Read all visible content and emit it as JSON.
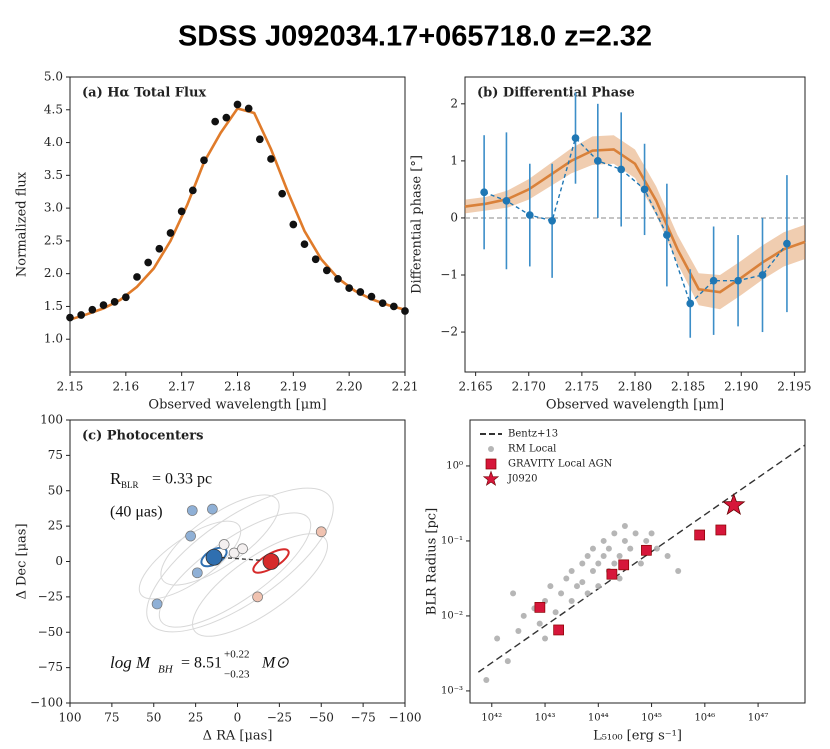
{
  "title": "SDSS J092034.17+065718.0   z=2.32",
  "chart_data": [
    {
      "type": "line",
      "title": "(a) Hα Total Flux",
      "xlabel": "Observed wavelength [μm]",
      "ylabel": "Normalized flux",
      "xlim": [
        2.15,
        2.21
      ],
      "ylim": [
        0.5,
        5.0
      ],
      "xticks": [
        2.15,
        2.16,
        2.17,
        2.18,
        2.19,
        {
          "value": 2.2,
          "label": "2.20"
        },
        2.21
      ],
      "yticks": [
        {
          "value": 1,
          "label": "1.0"
        },
        1.5,
        {
          "value": 2,
          "label": "2.0"
        },
        2.5,
        {
          "value": 3,
          "label": "3.0"
        },
        3.5,
        {
          "value": 4,
          "label": "4.0"
        },
        4.5,
        {
          "value": 5,
          "label": "5.0"
        }
      ],
      "series": [
        {
          "color": "#e07b2a",
          "line": "solid",
          "x": [
            2.15,
            2.153,
            2.156,
            2.159,
            2.162,
            2.165,
            2.168,
            2.171,
            2.174,
            2.177,
            2.18,
            2.183,
            2.186,
            2.189,
            2.192,
            2.195,
            2.198,
            2.201,
            2.204,
            2.207,
            2.21
          ],
          "values": [
            1.3,
            1.38,
            1.47,
            1.6,
            1.8,
            2.08,
            2.5,
            3.05,
            3.7,
            4.15,
            4.52,
            4.45,
            3.9,
            3.25,
            2.65,
            2.22,
            1.93,
            1.74,
            1.61,
            1.52,
            1.45
          ]
        },
        {
          "color": "#111111",
          "marker": "circle",
          "x": [
            2.15,
            2.152,
            2.154,
            2.156,
            2.158,
            2.16,
            2.162,
            2.164,
            2.166,
            2.168,
            2.17,
            2.172,
            2.174,
            2.176,
            2.178,
            2.18,
            2.182,
            2.184,
            2.186,
            2.188,
            2.19,
            2.192,
            2.194,
            2.196,
            2.198,
            2.2,
            2.202,
            2.204,
            2.206,
            2.208,
            2.21
          ],
          "values": [
            1.33,
            1.37,
            1.45,
            1.52,
            1.57,
            1.64,
            1.95,
            2.17,
            2.38,
            2.62,
            2.95,
            3.27,
            3.73,
            4.32,
            4.38,
            4.58,
            4.52,
            4.05,
            3.75,
            3.22,
            2.75,
            2.45,
            2.22,
            2.05,
            1.92,
            1.78,
            1.72,
            1.65,
            1.55,
            1.5,
            1.43
          ]
        }
      ]
    },
    {
      "type": "line",
      "title": "(b) Differential Phase",
      "xlabel": "Observed wavelength [μm]",
      "ylabel": "Differential phase [°]",
      "xlim": [
        2.164,
        2.196
      ],
      "ylim": [
        -2.7,
        2.47
      ],
      "xticks": [
        2.165,
        {
          "value": 2.17,
          "label": "2.170"
        },
        2.175,
        {
          "value": 2.18,
          "label": "2.180"
        },
        2.185,
        {
          "value": 2.19,
          "label": "2.190"
        },
        2.195
      ],
      "yticks": [
        {
          "value": -2,
          "label": "−2"
        },
        {
          "value": -1,
          "label": "−1"
        },
        0,
        1,
        2
      ],
      "hlines": [
        0
      ],
      "series": [
        {
          "color": "#d9813a",
          "line": "solid",
          "band": true,
          "x": [
            2.164,
            2.166,
            2.168,
            2.17,
            2.172,
            2.174,
            2.176,
            2.178,
            2.18,
            2.182,
            2.184,
            2.186,
            2.188,
            2.19,
            2.192,
            2.194,
            2.196
          ],
          "values": [
            0.2,
            0.25,
            0.33,
            0.5,
            0.75,
            1.0,
            1.18,
            1.2,
            0.95,
            0.3,
            -0.55,
            -1.25,
            -1.3,
            -1.05,
            -0.78,
            -0.55,
            -0.42
          ],
          "errors": [
            0.12,
            0.12,
            0.15,
            0.18,
            0.2,
            0.22,
            0.25,
            0.25,
            0.25,
            0.25,
            0.25,
            0.28,
            0.3,
            0.3,
            0.3,
            0.3,
            0.3
          ]
        },
        {
          "color": "#1f77b4",
          "line": "dashed",
          "marker": "circle",
          "x": [
            2.1658,
            2.1679,
            2.1701,
            2.1722,
            2.1744,
            2.1765,
            2.1787,
            2.1809,
            2.183,
            2.1852,
            2.1874,
            2.1897,
            2.192,
            2.1943
          ],
          "values": [
            0.45,
            0.3,
            0.05,
            -0.05,
            1.4,
            1.0,
            0.85,
            0.5,
            -0.3,
            -1.5,
            -1.1,
            -1.1,
            -1.0,
            -0.45
          ],
          "errors": [
            1.0,
            1.2,
            0.9,
            1.0,
            0.8,
            1.0,
            1.0,
            0.8,
            0.9,
            0.6,
            0.95,
            0.8,
            1.0,
            1.2
          ]
        }
      ]
    },
    {
      "type": "scatter",
      "title": "(c) Photocenters",
      "xlabel": "Δ RA [μas]",
      "ylabel": "Δ Dec [μas]",
      "xlim": [
        100,
        -100
      ],
      "ylim": [
        -100,
        100
      ],
      "xticks": [
        100,
        75,
        50,
        25,
        0,
        {
          "value": -25,
          "label": "−25"
        },
        {
          "value": -50,
          "label": "−50"
        },
        {
          "value": -75,
          "label": "−75"
        },
        {
          "value": -100,
          "label": "−100"
        }
      ],
      "yticks": [
        {
          "value": -100,
          "label": "−100"
        },
        {
          "value": -75,
          "label": "−75"
        },
        {
          "value": -50,
          "label": "−50"
        },
        {
          "value": -25,
          "label": "−25"
        },
        0,
        25,
        50,
        75,
        100
      ],
      "annotations": [
        "R",
        "BLR",
        "= 0.33 pc",
        "(40 μas)",
        "log M",
        "BH",
        "= 8.51",
        "+0.22",
        "−0.23",
        "M⊙"
      ],
      "series": [
        {
          "color": "#8fb0d6",
          "marker": "circle",
          "x": [
            28,
            15,
            24,
            48,
            27
          ],
          "values": [
            18,
            37,
            -8,
            -30,
            36
          ]
        },
        {
          "color": "#f0c2b0",
          "marker": "circle",
          "x": [
            -50,
            -12
          ],
          "values": [
            21,
            -25
          ]
        },
        {
          "color": "#f4f0f0",
          "marker": "circle",
          "x": [
            2,
            -3,
            8
          ],
          "values": [
            6,
            9,
            12
          ]
        },
        {
          "color": "#2f6fb0",
          "marker": "circle-large",
          "x": [
            14
          ],
          "values": [
            3
          ]
        },
        {
          "color": "#d62a2a",
          "marker": "circle-large",
          "x": [
            -20
          ],
          "values": [
            0
          ]
        }
      ]
    },
    {
      "type": "scatter",
      "xlabel": "L₅₁₀₀ [erg s⁻¹]",
      "ylabel": "BLR Radius [pc]",
      "log": true,
      "legend": "upper left",
      "xlim": [
        3.9e+41,
        7.6e+47
      ],
      "ylim": [
        0.00069,
        4.1
      ],
      "xticks": [
        {
          "value": 1e+42,
          "label": "10⁴²"
        },
        {
          "value": 1e+43,
          "label": "10⁴³"
        },
        {
          "value": 1e+44,
          "label": "10⁴⁴"
        },
        {
          "value": 1e+45,
          "label": "10⁴⁵"
        },
        {
          "value": 1e+46,
          "label": "10⁴⁶"
        },
        {
          "value": 1e+47,
          "label": "10⁴⁷"
        }
      ],
      "yticks": [
        {
          "value": 0.001,
          "label": "10⁻³"
        },
        {
          "value": 0.01,
          "label": "10⁻²"
        },
        {
          "value": 0.1,
          "label": "10⁻¹"
        },
        {
          "value": 1,
          "label": "10⁰"
        }
      ],
      "series": [
        {
          "name": "Bentz+13",
          "color": "#333333",
          "line": "dashed",
          "x": [
            5.6e+41,
            7.6e+47
          ],
          "values": [
            0.00178,
            1.9
          ]
        },
        {
          "name": "RM Local",
          "color": "#a9a9a9",
          "marker": "dot",
          "x": [
            7.9e+41,
            1.26e+42,
            2e+42,
            3.16e+42,
            3.98e+42,
            6.31e+42,
            7.94e+42,
            1e+43,
            1.26e+43,
            1.58e+43,
            2e+43,
            2.51e+43,
            3.16e+43,
            3.16e+43,
            3.98e+43,
            5.01e+43,
            5.01e+43,
            6.31e+43,
            6.31e+43,
            7.94e+43,
            7.94e+43,
            1e+44,
            1e+44,
            1.26e+44,
            1.26e+44,
            1.58e+44,
            1.58e+44,
            2e+44,
            2e+44,
            2.51e+44,
            2.51e+44,
            3.16e+44,
            3.16e+44,
            3.98e+44,
            5.01e+44,
            6.31e+44,
            7.94e+44,
            1e+45,
            1.26e+45,
            2e+45,
            3.16e+45,
            2.51e+42,
            1e+43
          ],
          "values": [
            0.0014,
            0.005,
            0.0025,
            0.0063,
            0.01,
            0.0126,
            0.0079,
            0.0158,
            0.025,
            0.0112,
            0.02,
            0.0316,
            0.0158,
            0.0398,
            0.025,
            0.05,
            0.0282,
            0.063,
            0.02,
            0.0398,
            0.079,
            0.05,
            0.025,
            0.063,
            0.1,
            0.0398,
            0.079,
            0.126,
            0.05,
            0.063,
            0.0316,
            0.1,
            0.158,
            0.079,
            0.126,
            0.05,
            0.1,
            0.126,
            0.079,
            0.063,
            0.0398,
            0.02,
            0.005
          ]
        },
        {
          "name": "GRAVITY Local AGN",
          "color": "#d6163a",
          "marker": "square",
          "x": [
            8e+42,
            1.8e+43,
            1.8e+44,
            3e+44,
            8e+44,
            8e+45,
            2e+46
          ],
          "values": [
            0.013,
            0.0065,
            0.036,
            0.048,
            0.075,
            0.12,
            0.14
          ]
        },
        {
          "name": "J0920",
          "color": "#d6163a",
          "marker": "star",
          "x": [
            3.5e+46
          ],
          "values": [
            0.3
          ]
        }
      ]
    }
  ]
}
